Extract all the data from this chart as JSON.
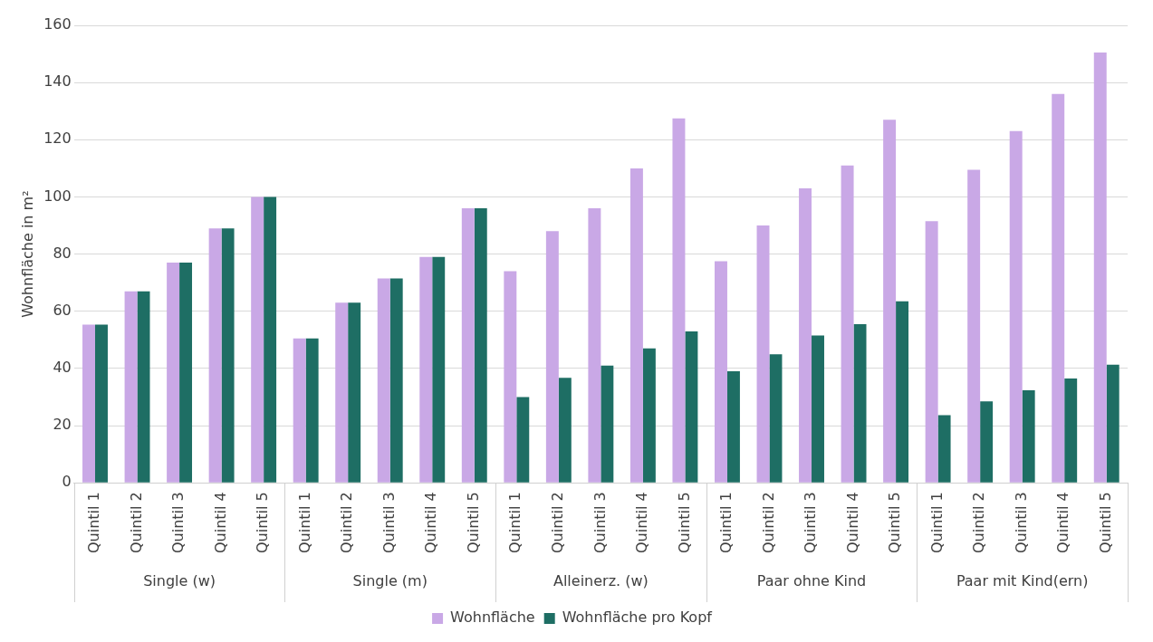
{
  "chart_data": {
    "type": "bar",
    "ylabel": "Wohnfläche in m²",
    "categories": [
      "Quintil 1",
      "Quintil 2",
      "Quintil 3",
      "Quintil 4",
      "Quintil 5",
      "Quintil 1",
      "Quintil 2",
      "Quintil 3",
      "Quintil 4",
      "Quintil 5",
      "Quintil 1",
      "Quintil 2",
      "Quintil 3",
      "Quintil 4",
      "Quintil 5",
      "Quintil 1",
      "Quintil 2",
      "Quintil 3",
      "Quintil 4",
      "Quintil 5",
      "Quintil 1",
      "Quintil 2",
      "Quintil 3",
      "Quintil 4",
      "Quintil 5"
    ],
    "annotations": [
      "Single (w)",
      "Single (m)",
      "Alleinerz. (w)",
      "Paar ohne Kind",
      "Paar mit Kind(ern)"
    ],
    "series": [
      {
        "name": "Wohnfläche",
        "color": "#c9a8e6",
        "values": [
          55.3,
          67,
          77,
          89,
          100,
          50.5,
          63,
          71.5,
          79,
          96,
          74,
          88,
          96,
          110,
          127.5,
          77.5,
          90,
          103,
          111,
          127,
          91.5,
          109.5,
          123,
          136,
          150.5
        ]
      },
      {
        "name": "Wohnfläche pro Kopf",
        "color": "#1e6e64",
        "values": [
          55.3,
          67,
          77,
          89,
          100,
          50.5,
          63,
          71.5,
          79,
          96,
          30,
          36.7,
          41,
          47,
          53,
          39,
          45,
          51.5,
          55.5,
          63.5,
          23.7,
          28.5,
          32.4,
          36.5,
          41.3
        ]
      }
    ],
    "ylim": [
      0,
      160
    ],
    "yticks": [
      0,
      20,
      40,
      60,
      80,
      100,
      120,
      140,
      160
    ],
    "grid": "y",
    "legend": "bottom"
  }
}
